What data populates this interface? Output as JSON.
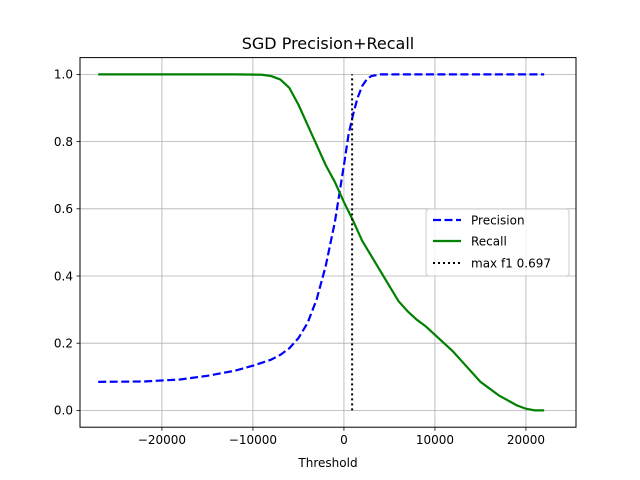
{
  "chart_data": {
    "type": "line",
    "title": "SGD Precision+Recall",
    "xlabel": "Threshold",
    "ylabel": "",
    "xlim": [
      -29000,
      25500
    ],
    "ylim": [
      -0.05,
      1.05
    ],
    "xticks": [
      -20000,
      -10000,
      0,
      10000,
      20000
    ],
    "xtick_labels": [
      "−20000",
      "−10000",
      "0",
      "10000",
      "20000"
    ],
    "yticks": [
      0.0,
      0.2,
      0.4,
      0.6,
      0.8,
      1.0
    ],
    "ytick_labels": [
      "0.0",
      "0.2",
      "0.4",
      "0.6",
      "0.8",
      "1.0"
    ],
    "grid": true,
    "legend_position": "center-right",
    "series": [
      {
        "name": "Precision",
        "color": "#0000ff",
        "style": "dashed",
        "x": [
          -27000,
          -22000,
          -18000,
          -15000,
          -12000,
          -10000,
          -8000,
          -7000,
          -6000,
          -5000,
          -4000,
          -3000,
          -2000,
          -1000,
          0,
          500,
          1000,
          1500,
          2000,
          2500,
          3000,
          4000,
          8000,
          15000,
          22000
        ],
        "y": [
          0.085,
          0.086,
          0.092,
          0.103,
          0.118,
          0.133,
          0.151,
          0.165,
          0.185,
          0.215,
          0.26,
          0.33,
          0.43,
          0.56,
          0.73,
          0.82,
          0.88,
          0.93,
          0.965,
          0.985,
          0.995,
          1.0,
          1.0,
          1.0,
          1.0
        ]
      },
      {
        "name": "Recall",
        "color": "#008000",
        "style": "solid",
        "x": [
          -27000,
          -20000,
          -12000,
          -9000,
          -8000,
          -7000,
          -6000,
          -5000,
          -4000,
          -3000,
          -2000,
          -1000,
          0,
          1000,
          2000,
          3000,
          4000,
          5000,
          6000,
          7000,
          8000,
          9000,
          10000,
          11000,
          12000,
          13000,
          14000,
          15000,
          16000,
          17000,
          18000,
          19000,
          20000,
          21000,
          22000
        ],
        "y": [
          1.0,
          1.0,
          1.0,
          0.999,
          0.995,
          0.985,
          0.96,
          0.91,
          0.85,
          0.79,
          0.73,
          0.68,
          0.62,
          0.565,
          0.505,
          0.46,
          0.415,
          0.37,
          0.325,
          0.295,
          0.27,
          0.25,
          0.225,
          0.2,
          0.175,
          0.145,
          0.115,
          0.085,
          0.065,
          0.045,
          0.03,
          0.015,
          0.005,
          0.0,
          0.0
        ]
      }
    ],
    "vline": {
      "name": "max f1 0.697",
      "x": 900,
      "y_range": [
        0.0,
        1.0
      ],
      "color": "#000000",
      "style": "dotted"
    }
  }
}
